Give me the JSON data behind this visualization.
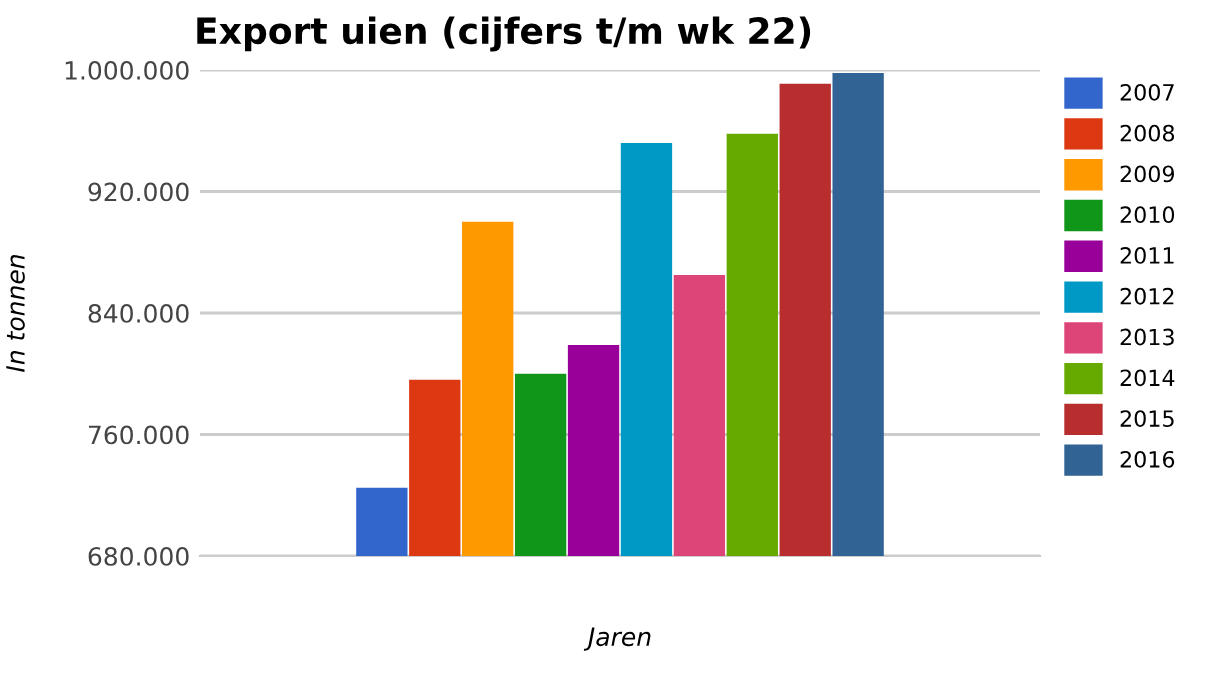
{
  "chart_data": {
    "type": "bar",
    "title": "Export uien (cijfers t/m wk 22)",
    "xlabel": "Jaren",
    "ylabel": "In tonnen",
    "categories": [
      null
    ],
    "series": [
      {
        "name": "2007",
        "color": "#3366cc",
        "values": [
          725000
        ]
      },
      {
        "name": "2008",
        "color": "#dc3912",
        "values": [
          796000
        ]
      },
      {
        "name": "2009",
        "color": "#ff9900",
        "values": [
          900000
        ]
      },
      {
        "name": "2010",
        "color": "#109618",
        "values": [
          800000
        ]
      },
      {
        "name": "2011",
        "color": "#990099",
        "values": [
          819000
        ]
      },
      {
        "name": "2012",
        "color": "#0099c6",
        "values": [
          952000
        ]
      },
      {
        "name": "2013",
        "color": "#dd4477",
        "values": [
          865000
        ]
      },
      {
        "name": "2014",
        "color": "#66aa00",
        "values": [
          958000
        ]
      },
      {
        "name": "2015",
        "color": "#b82e2e",
        "values": [
          991000
        ]
      },
      {
        "name": "2016",
        "color": "#316395",
        "values": [
          998000
        ]
      }
    ],
    "ylim": [
      680000,
      1000000
    ],
    "yticks": [
      {
        "value": 680000,
        "label": "680.000"
      },
      {
        "value": 760000,
        "label": "760.000"
      },
      {
        "value": 840000,
        "label": "840.000"
      },
      {
        "value": 920000,
        "label": "920.000"
      },
      {
        "value": 1000000,
        "label": "1.000.000"
      }
    ],
    "grid": "y",
    "legend": "right"
  }
}
